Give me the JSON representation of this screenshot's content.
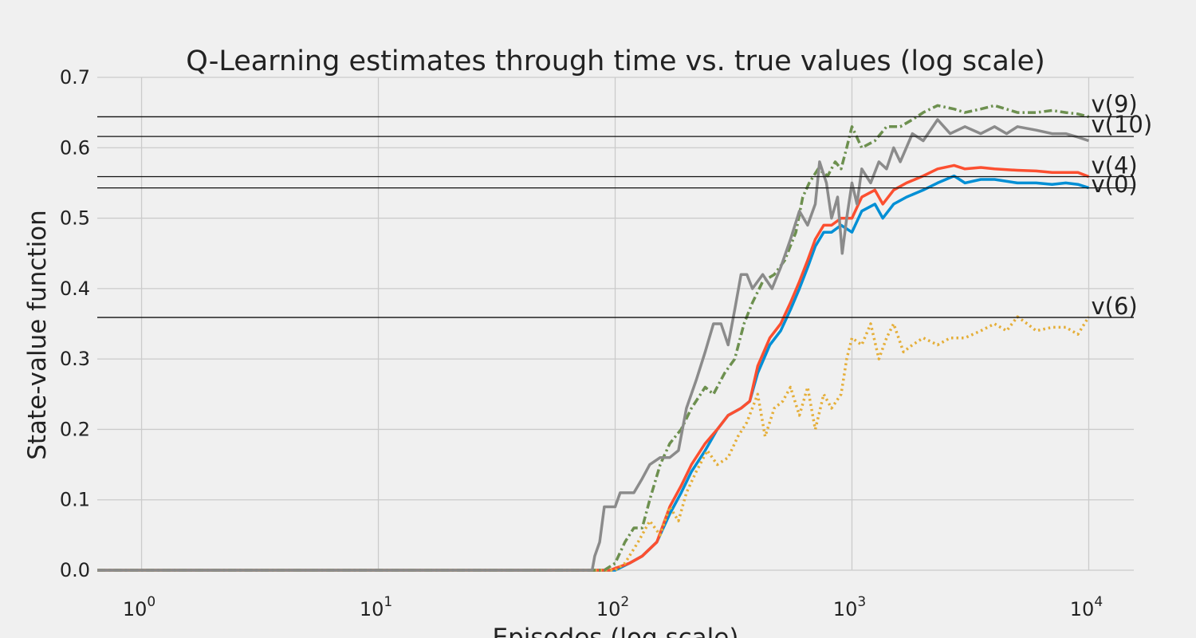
{
  "chart_data": {
    "type": "line",
    "title": "Q-Learning estimates through time vs. true values (log scale)",
    "xlabel": "Episodes (log scale)",
    "ylabel": "State-value function",
    "xscale": "log",
    "xlim": [
      0.65,
      15500
    ],
    "ylim": [
      0,
      0.7
    ],
    "x_tick_base": "10",
    "x_ticks": [
      {
        "value": 1,
        "exp": "0"
      },
      {
        "value": 10,
        "exp": "1"
      },
      {
        "value": 100,
        "exp": "2"
      },
      {
        "value": 1000,
        "exp": "3"
      },
      {
        "value": 10000,
        "exp": "4"
      }
    ],
    "y_ticks": [
      {
        "value": 0.0,
        "label": "0.0"
      },
      {
        "value": 0.1,
        "label": "0.1"
      },
      {
        "value": 0.2,
        "label": "0.2"
      },
      {
        "value": 0.3,
        "label": "0.3"
      },
      {
        "value": 0.4,
        "label": "0.4"
      },
      {
        "value": 0.5,
        "label": "0.5"
      },
      {
        "value": 0.6,
        "label": "0.6"
      },
      {
        "value": 0.7,
        "label": "0.7"
      }
    ],
    "grid": true,
    "reference_lines": [
      {
        "label": "v(9)",
        "y": 0.644,
        "label_y": 0.662
      },
      {
        "label": "v(10)",
        "y": 0.616,
        "label_y": 0.633
      },
      {
        "label": "v(4)",
        "y": 0.559,
        "label_y": 0.575
      },
      {
        "label": "v(0)",
        "y": 0.543,
        "label_y": 0.548
      },
      {
        "label": "v(6)",
        "y": 0.359,
        "label_y": 0.375
      }
    ],
    "series": [
      {
        "color": "#008fd5",
        "dash": "solid",
        "points": [
          [
            0.65,
            0
          ],
          [
            100,
            0
          ],
          [
            115,
            0.01
          ],
          [
            130,
            0.02
          ],
          [
            150,
            0.04
          ],
          [
            170,
            0.08
          ],
          [
            190,
            0.11
          ],
          [
            210,
            0.14
          ],
          [
            240,
            0.17
          ],
          [
            270,
            0.2
          ],
          [
            300,
            0.22
          ],
          [
            340,
            0.23
          ],
          [
            370,
            0.24
          ],
          [
            400,
            0.28
          ],
          [
            450,
            0.32
          ],
          [
            500,
            0.34
          ],
          [
            550,
            0.37
          ],
          [
            600,
            0.4
          ],
          [
            650,
            0.43
          ],
          [
            700,
            0.46
          ],
          [
            760,
            0.48
          ],
          [
            820,
            0.48
          ],
          [
            900,
            0.49
          ],
          [
            1000,
            0.48
          ],
          [
            1100,
            0.51
          ],
          [
            1250,
            0.52
          ],
          [
            1350,
            0.5
          ],
          [
            1500,
            0.52
          ],
          [
            1700,
            0.53
          ],
          [
            2000,
            0.54
          ],
          [
            2300,
            0.55
          ],
          [
            2700,
            0.56
          ],
          [
            3000,
            0.55
          ],
          [
            3500,
            0.555
          ],
          [
            4000,
            0.555
          ],
          [
            5000,
            0.55
          ],
          [
            6000,
            0.55
          ],
          [
            7000,
            0.548
          ],
          [
            8000,
            0.55
          ],
          [
            9000,
            0.548
          ],
          [
            10000,
            0.543
          ]
        ]
      },
      {
        "color": "#fc4f30",
        "dash": "solid",
        "points": [
          [
            0.65,
            0
          ],
          [
            95,
            0
          ],
          [
            115,
            0.01
          ],
          [
            130,
            0.02
          ],
          [
            150,
            0.04
          ],
          [
            170,
            0.09
          ],
          [
            190,
            0.12
          ],
          [
            210,
            0.15
          ],
          [
            240,
            0.18
          ],
          [
            270,
            0.2
          ],
          [
            300,
            0.22
          ],
          [
            340,
            0.23
          ],
          [
            370,
            0.24
          ],
          [
            400,
            0.29
          ],
          [
            450,
            0.33
          ],
          [
            500,
            0.35
          ],
          [
            550,
            0.38
          ],
          [
            600,
            0.41
          ],
          [
            650,
            0.44
          ],
          [
            700,
            0.47
          ],
          [
            760,
            0.49
          ],
          [
            820,
            0.49
          ],
          [
            900,
            0.5
          ],
          [
            1000,
            0.5
          ],
          [
            1100,
            0.53
          ],
          [
            1250,
            0.54
          ],
          [
            1350,
            0.52
          ],
          [
            1500,
            0.54
          ],
          [
            1700,
            0.55
          ],
          [
            2000,
            0.56
          ],
          [
            2300,
            0.57
          ],
          [
            2700,
            0.575
          ],
          [
            3000,
            0.57
          ],
          [
            3500,
            0.572
          ],
          [
            4000,
            0.57
          ],
          [
            5000,
            0.568
          ],
          [
            6000,
            0.567
          ],
          [
            7000,
            0.565
          ],
          [
            8000,
            0.565
          ],
          [
            9000,
            0.565
          ],
          [
            10000,
            0.559
          ]
        ]
      },
      {
        "color": "#e5ae38",
        "dash": "dotted",
        "points": [
          [
            0.65,
            0
          ],
          [
            100,
            0
          ],
          [
            110,
            0.01
          ],
          [
            125,
            0.04
          ],
          [
            140,
            0.07
          ],
          [
            155,
            0.05
          ],
          [
            170,
            0.09
          ],
          [
            185,
            0.07
          ],
          [
            200,
            0.11
          ],
          [
            220,
            0.14
          ],
          [
            245,
            0.17
          ],
          [
            270,
            0.15
          ],
          [
            300,
            0.16
          ],
          [
            330,
            0.19
          ],
          [
            360,
            0.21
          ],
          [
            400,
            0.25
          ],
          [
            430,
            0.19
          ],
          [
            470,
            0.23
          ],
          [
            510,
            0.24
          ],
          [
            550,
            0.26
          ],
          [
            600,
            0.22
          ],
          [
            650,
            0.26
          ],
          [
            700,
            0.2
          ],
          [
            760,
            0.25
          ],
          [
            820,
            0.23
          ],
          [
            900,
            0.25
          ],
          [
            950,
            0.3
          ],
          [
            1000,
            0.33
          ],
          [
            1100,
            0.32
          ],
          [
            1200,
            0.35
          ],
          [
            1300,
            0.3
          ],
          [
            1400,
            0.33
          ],
          [
            1500,
            0.35
          ],
          [
            1650,
            0.31
          ],
          [
            1800,
            0.32
          ],
          [
            2000,
            0.33
          ],
          [
            2300,
            0.32
          ],
          [
            2600,
            0.33
          ],
          [
            3000,
            0.33
          ],
          [
            3500,
            0.34
          ],
          [
            4000,
            0.35
          ],
          [
            4500,
            0.34
          ],
          [
            5000,
            0.36
          ],
          [
            5500,
            0.35
          ],
          [
            6000,
            0.34
          ],
          [
            7000,
            0.345
          ],
          [
            8000,
            0.345
          ],
          [
            9000,
            0.335
          ],
          [
            10000,
            0.36
          ]
        ]
      },
      {
        "color": "#6d904f",
        "dash": "dashdot",
        "points": [
          [
            0.65,
            0
          ],
          [
            90,
            0
          ],
          [
            100,
            0.01
          ],
          [
            110,
            0.04
          ],
          [
            120,
            0.06
          ],
          [
            130,
            0.06
          ],
          [
            140,
            0.1
          ],
          [
            155,
            0.15
          ],
          [
            170,
            0.18
          ],
          [
            190,
            0.2
          ],
          [
            210,
            0.23
          ],
          [
            240,
            0.26
          ],
          [
            260,
            0.25
          ],
          [
            290,
            0.28
          ],
          [
            320,
            0.3
          ],
          [
            350,
            0.35
          ],
          [
            380,
            0.38
          ],
          [
            420,
            0.41
          ],
          [
            470,
            0.42
          ],
          [
            520,
            0.44
          ],
          [
            580,
            0.48
          ],
          [
            620,
            0.53
          ],
          [
            660,
            0.55
          ],
          [
            720,
            0.57
          ],
          [
            790,
            0.56
          ],
          [
            850,
            0.58
          ],
          [
            900,
            0.57
          ],
          [
            950,
            0.6
          ],
          [
            1000,
            0.63
          ],
          [
            1100,
            0.6
          ],
          [
            1250,
            0.61
          ],
          [
            1400,
            0.63
          ],
          [
            1600,
            0.63
          ],
          [
            1800,
            0.64
          ],
          [
            2000,
            0.65
          ],
          [
            2300,
            0.66
          ],
          [
            2700,
            0.655
          ],
          [
            3000,
            0.65
          ],
          [
            3500,
            0.655
          ],
          [
            4000,
            0.66
          ],
          [
            5000,
            0.65
          ],
          [
            6000,
            0.65
          ],
          [
            7000,
            0.653
          ],
          [
            8000,
            0.65
          ],
          [
            9000,
            0.648
          ],
          [
            10000,
            0.644
          ]
        ]
      },
      {
        "color": "#8b8b8b",
        "dash": "solid",
        "points": [
          [
            0.65,
            0
          ],
          [
            80,
            0
          ],
          [
            82,
            0.02
          ],
          [
            86,
            0.04
          ],
          [
            90,
            0.09
          ],
          [
            100,
            0.09
          ],
          [
            105,
            0.11
          ],
          [
            120,
            0.11
          ],
          [
            130,
            0.13
          ],
          [
            140,
            0.15
          ],
          [
            155,
            0.16
          ],
          [
            170,
            0.16
          ],
          [
            185,
            0.17
          ],
          [
            200,
            0.23
          ],
          [
            220,
            0.27
          ],
          [
            240,
            0.31
          ],
          [
            260,
            0.35
          ],
          [
            280,
            0.35
          ],
          [
            300,
            0.32
          ],
          [
            320,
            0.37
          ],
          [
            340,
            0.42
          ],
          [
            360,
            0.42
          ],
          [
            380,
            0.4
          ],
          [
            420,
            0.42
          ],
          [
            460,
            0.4
          ],
          [
            500,
            0.43
          ],
          [
            550,
            0.47
          ],
          [
            600,
            0.51
          ],
          [
            650,
            0.49
          ],
          [
            700,
            0.52
          ],
          [
            730,
            0.58
          ],
          [
            780,
            0.55
          ],
          [
            820,
            0.5
          ],
          [
            870,
            0.53
          ],
          [
            910,
            0.45
          ],
          [
            950,
            0.5
          ],
          [
            1000,
            0.55
          ],
          [
            1050,
            0.52
          ],
          [
            1100,
            0.57
          ],
          [
            1200,
            0.55
          ],
          [
            1300,
            0.58
          ],
          [
            1400,
            0.57
          ],
          [
            1500,
            0.6
          ],
          [
            1600,
            0.58
          ],
          [
            1800,
            0.62
          ],
          [
            2000,
            0.61
          ],
          [
            2300,
            0.64
          ],
          [
            2600,
            0.62
          ],
          [
            3000,
            0.63
          ],
          [
            3500,
            0.62
          ],
          [
            4000,
            0.63
          ],
          [
            4500,
            0.62
          ],
          [
            5000,
            0.63
          ],
          [
            6000,
            0.625
          ],
          [
            7000,
            0.62
          ],
          [
            8000,
            0.62
          ],
          [
            9000,
            0.615
          ],
          [
            10000,
            0.61
          ]
        ]
      }
    ]
  }
}
